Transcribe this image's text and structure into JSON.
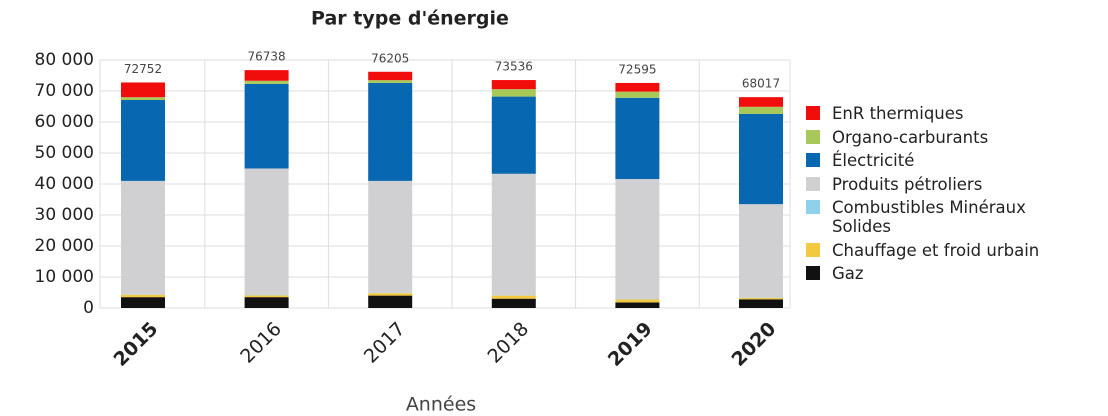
{
  "chart_data": {
    "type": "stacked_bar",
    "title": "Par type d'énergie",
    "x_label": "Années",
    "categories": [
      "2015",
      "2016",
      "2017",
      "2018",
      "2019",
      "2020"
    ],
    "series": [
      {
        "name": "Gaz",
        "color": "#111111",
        "values": [
          3500,
          3500,
          4000,
          3000,
          1800,
          2800
        ]
      },
      {
        "name": "Chauffage et froid urbain",
        "color": "#f5c842",
        "values": [
          800,
          600,
          800,
          1000,
          1000,
          500
        ]
      },
      {
        "name": "Combustibles Minéraux Solides",
        "color": "#8fd0ea",
        "values": [
          100,
          100,
          100,
          100,
          100,
          100
        ]
      },
      {
        "name": "Produits pétroliers",
        "color": "#d0d0d2",
        "values": [
          36600,
          40800,
          36100,
          39200,
          38700,
          30100
        ]
      },
      {
        "name": "Électricité",
        "color": "#0767b0",
        "values": [
          26100,
          27300,
          31600,
          24900,
          26200,
          29100
        ]
      },
      {
        "name": "Organo-carburants",
        "color": "#a8c85a",
        "values": [
          900,
          1000,
          900,
          2400,
          2000,
          2300
        ]
      },
      {
        "name": "EnR thermiques",
        "color": "#f20d0d",
        "values": [
          4752,
          3438,
          2705,
          2936,
          2795,
          3117
        ]
      }
    ],
    "totals": [
      72752,
      76738,
      76205,
      73536,
      72595,
      68017
    ],
    "ylim": [
      0,
      80000
    ],
    "yticks": [
      0,
      {
        "value": 10000,
        "label": "10 000"
      },
      {
        "value": 20000,
        "label": "20 000"
      },
      {
        "value": 30000,
        "label": "30 000"
      },
      {
        "value": 40000,
        "label": "40 000"
      },
      {
        "value": 50000,
        "label": "50 000"
      },
      {
        "value": 60000,
        "label": "60 000"
      },
      {
        "value": 70000,
        "label": "70 000"
      },
      {
        "value": 80000,
        "label": "80 000"
      }
    ],
    "grid": true
  }
}
